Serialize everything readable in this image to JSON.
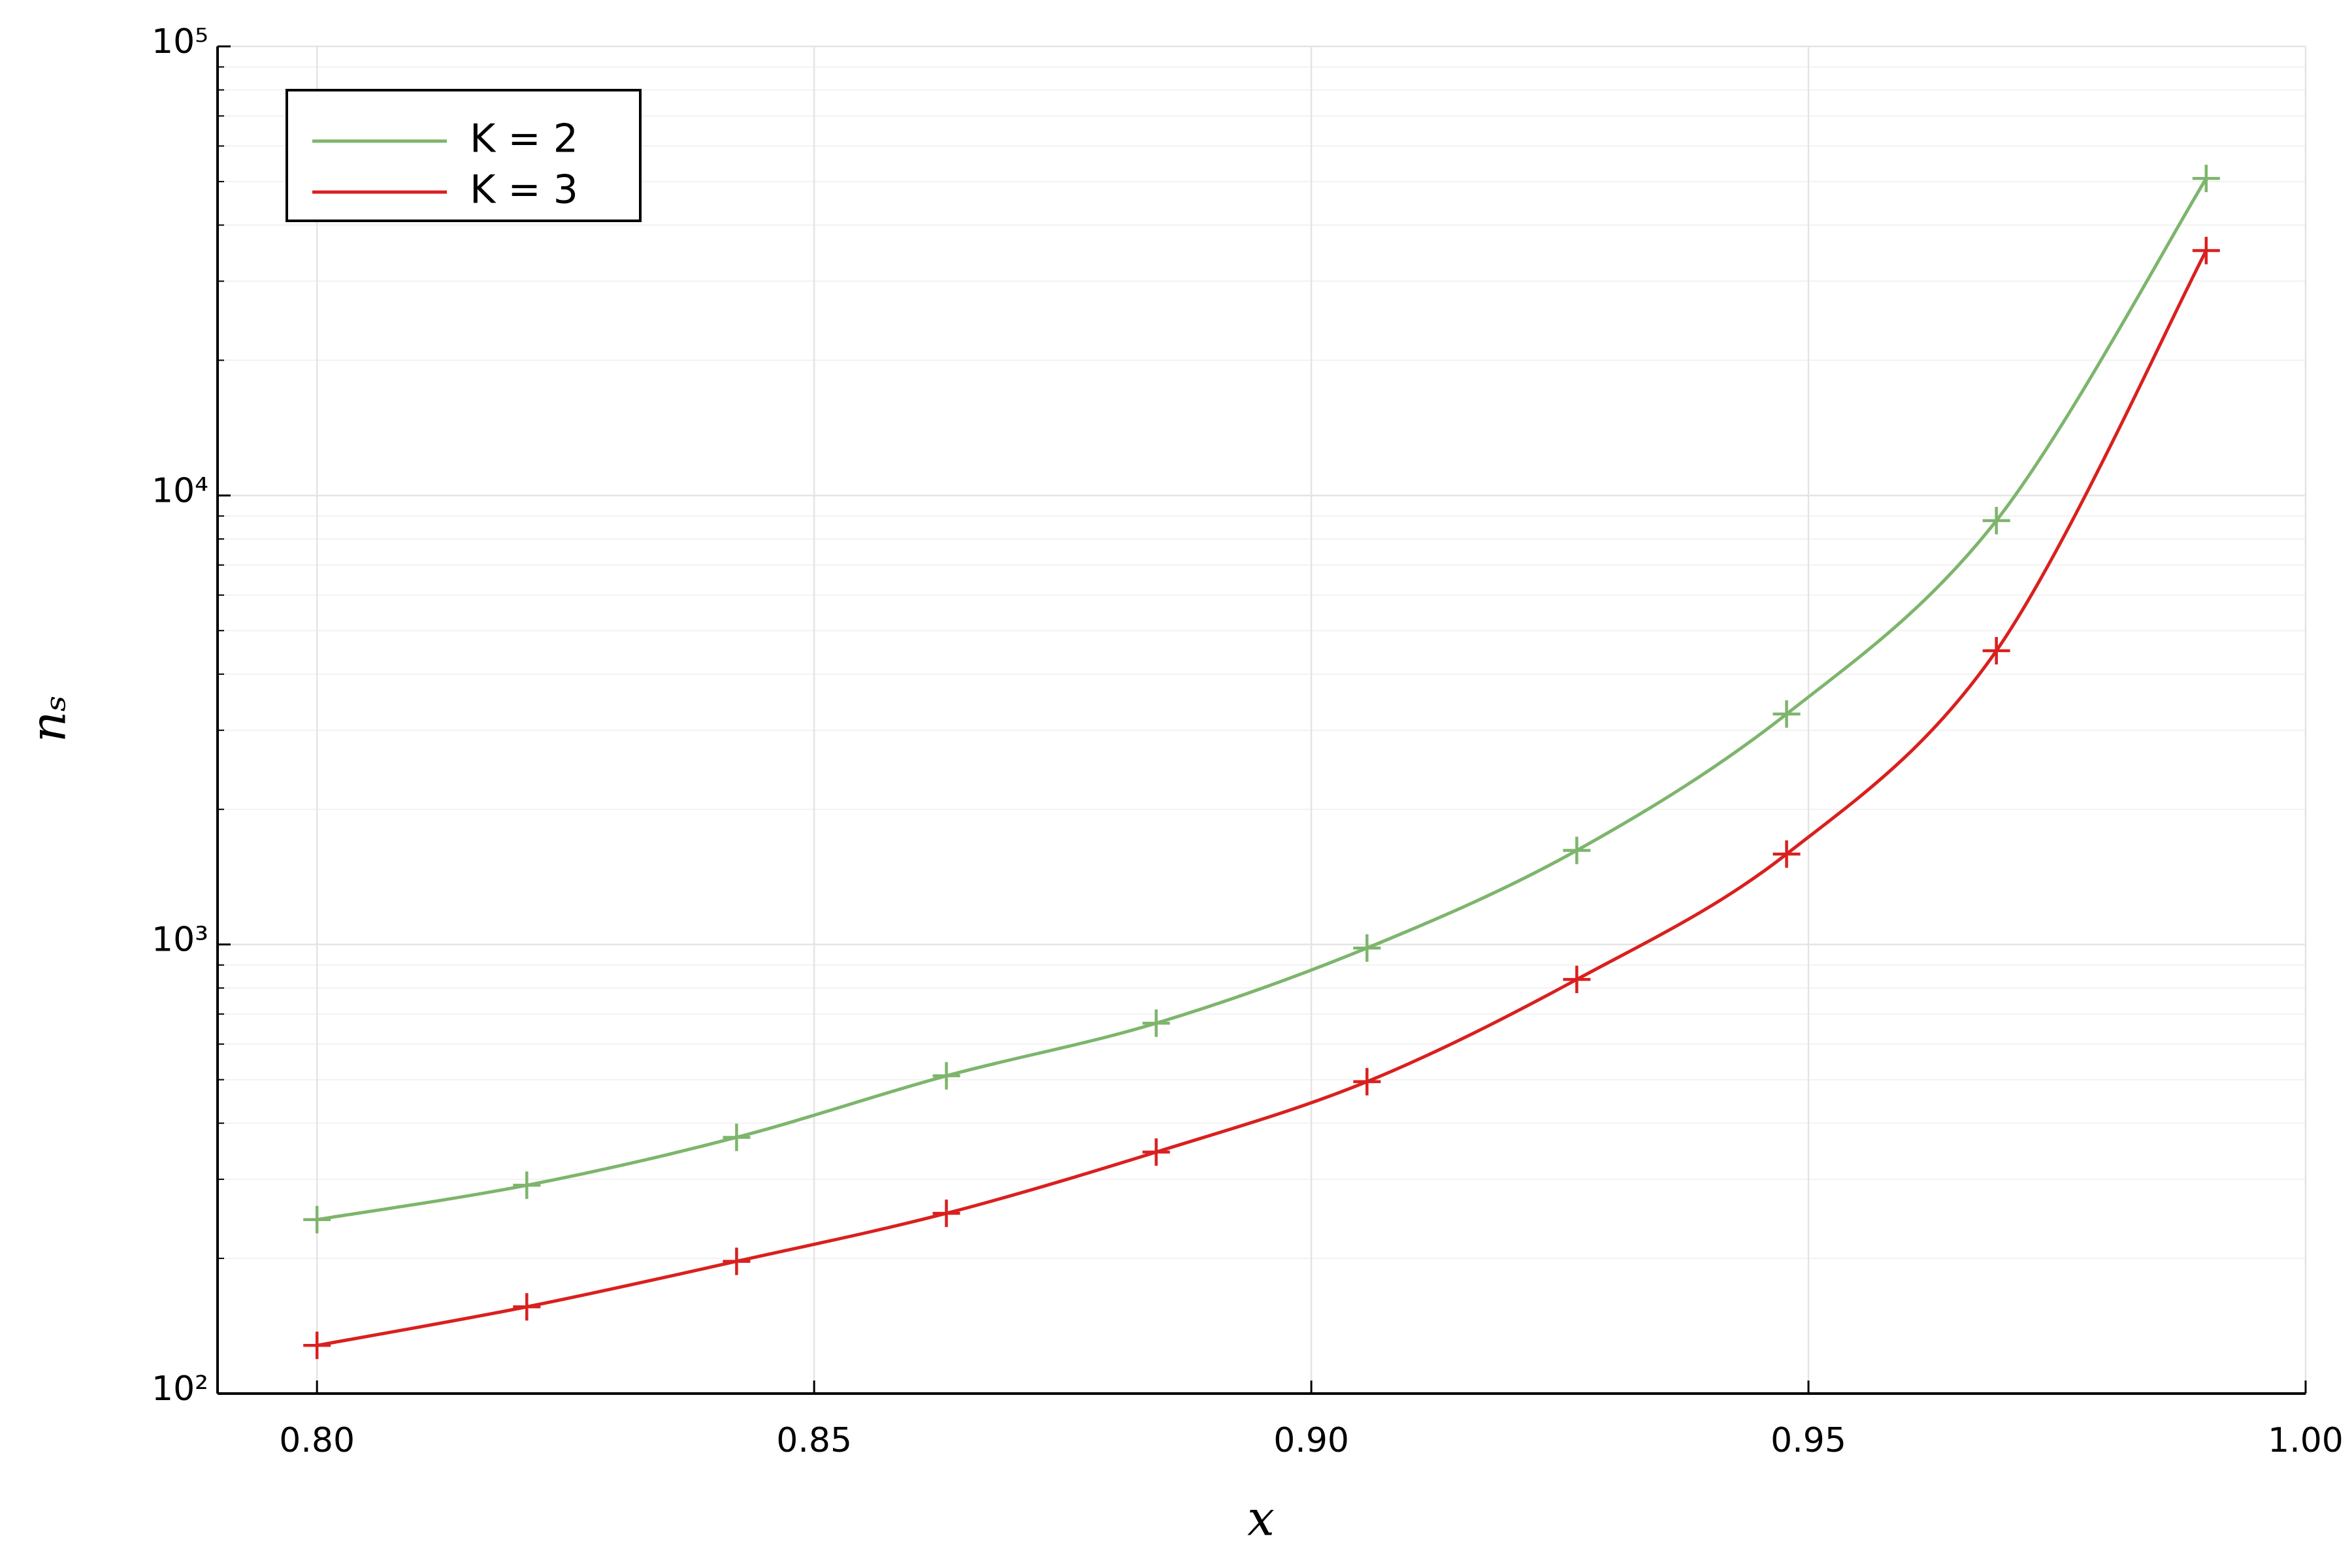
{
  "chart_data": {
    "type": "line",
    "xlabel": "x",
    "ylabel": "nₛ",
    "x": [
      0.8,
      0.8211,
      0.8422,
      0.8633,
      0.8844,
      0.9056,
      0.9267,
      0.9478,
      0.9689,
      0.99
    ],
    "series": [
      {
        "name": "K = 2",
        "color": "#7db56c",
        "values": [
          244,
          291,
          372,
          510,
          668,
          982,
          1620,
          3260,
          8790,
          50800
        ]
      },
      {
        "name": "K = 3",
        "color": "#d9201e",
        "values": [
          128,
          156,
          197,
          252,
          345,
          495,
          836,
          1590,
          4510,
          35100
        ]
      }
    ],
    "xlim": [
      0.79,
      1.0
    ],
    "xticks": [
      {
        "value": 0.8,
        "label": "0.80"
      },
      {
        "value": 0.85,
        "label": "0.85"
      },
      {
        "value": 0.9,
        "label": "0.90"
      },
      {
        "value": 0.95,
        "label": "0.95"
      },
      {
        "value": 1.0,
        "label": "1.00"
      }
    ],
    "ylim": [
      100,
      100000
    ],
    "yticks": [
      {
        "value": 100,
        "label": "10²"
      },
      {
        "value": 1000,
        "label": "10³"
      },
      {
        "value": 10000,
        "label": "10⁴"
      },
      {
        "value": 100000,
        "label": "10⁵"
      }
    ],
    "ylog": true,
    "grid": true,
    "minor_grid": true,
    "legend": "top-left",
    "marker": "cross"
  }
}
